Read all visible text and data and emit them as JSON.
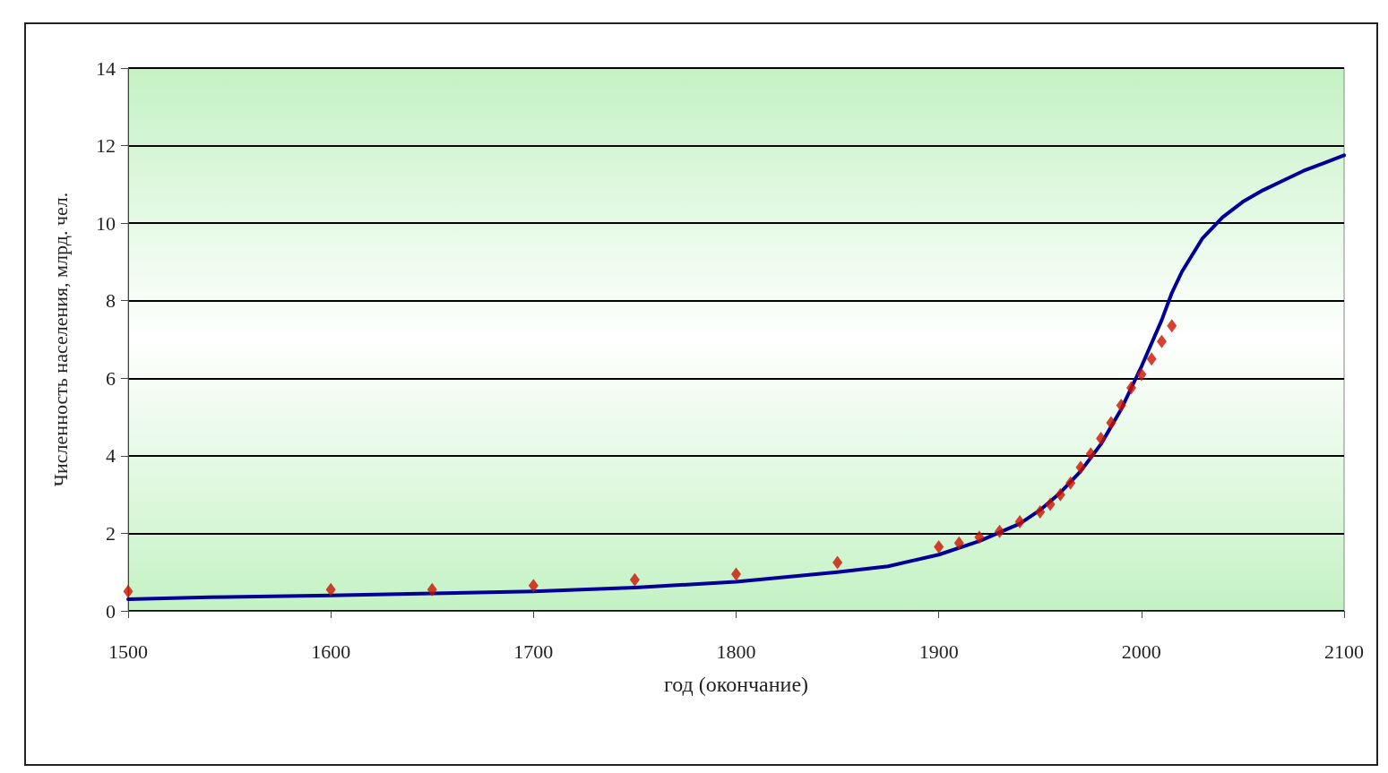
{
  "chart_data": {
    "type": "line",
    "xlabel": "год (окончание)",
    "ylabel": "Численность населения, млрд. чел.",
    "xlim": [
      1500,
      2100
    ],
    "xticks": [
      1500,
      1600,
      1700,
      1800,
      1900,
      2000,
      2100
    ],
    "ylim": [
      0,
      14
    ],
    "yticks": [
      0,
      2,
      4,
      6,
      8,
      10,
      12,
      14
    ],
    "grid": "y",
    "series": [
      {
        "color": "#000099",
        "marker": "none",
        "x": [
          1500,
          1540,
          1600,
          1650,
          1700,
          1750,
          1800,
          1850,
          1875,
          1900,
          1920,
          1940,
          1950,
          1960,
          1970,
          1980,
          1990,
          2000,
          2010,
          2015,
          2020,
          2030,
          2040,
          2050,
          2060,
          2070,
          2080,
          2090,
          2100
        ],
        "values": [
          0.3,
          0.35,
          0.4,
          0.45,
          0.5,
          0.6,
          0.75,
          1.0,
          1.15,
          1.45,
          1.8,
          2.25,
          2.6,
          3.05,
          3.6,
          4.3,
          5.2,
          6.3,
          7.5,
          8.2,
          8.75,
          9.6,
          10.15,
          10.55,
          10.85,
          11.1,
          11.35,
          11.55,
          11.75
        ]
      },
      {
        "type": "scatter",
        "color": "#cc1100",
        "marker": "diamond",
        "x": [
          1500,
          1600,
          1650,
          1700,
          1750,
          1800,
          1850,
          1900,
          1910,
          1920,
          1930,
          1940,
          1950,
          1955,
          1960,
          1965,
          1970,
          1975,
          1980,
          1985,
          1990,
          1995,
          2000,
          2005,
          2010,
          2015
        ],
        "values": [
          0.5,
          0.55,
          0.55,
          0.65,
          0.8,
          0.95,
          1.25,
          1.65,
          1.75,
          1.9,
          2.05,
          2.3,
          2.55,
          2.75,
          3.0,
          3.3,
          3.7,
          4.05,
          4.45,
          4.85,
          5.3,
          5.75,
          6.1,
          6.5,
          6.95,
          7.35
        ]
      }
    ]
  }
}
